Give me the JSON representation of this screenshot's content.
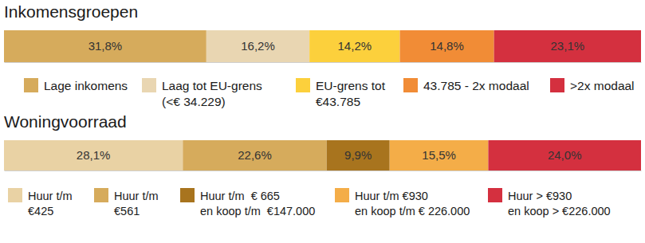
{
  "chart_data": [
    {
      "type": "bar",
      "title": "Inkomensgroepen",
      "orientation": "horizontal",
      "stacked": true,
      "data_labels": true,
      "tick_labels": false,
      "categories": [
        null
      ],
      "xlim": [
        0,
        100.1
      ],
      "series": [
        {
          "name": "Lage inkomens",
          "color": "#d6ab5c",
          "values": [
            31.8
          ],
          "value_labels": [
            "31,8%"
          ]
        },
        {
          "name": "Laag tot EU-grens\n(<€ 34.229)",
          "color": "#e9d6b2",
          "values": [
            16.2
          ],
          "value_labels": [
            "16,2%"
          ]
        },
        {
          "name": "EU-grens tot\n€43.785",
          "color": "#fcd03c",
          "values": [
            14.2
          ],
          "value_labels": [
            "14,2%"
          ]
        },
        {
          "name": "43.785 - 2x modaal",
          "color": "#f18c36",
          "values": [
            14.8
          ],
          "value_labels": [
            "14,8%"
          ]
        },
        {
          "name": ">2x modaal",
          "color": "#d4303f",
          "values": [
            23.1
          ],
          "value_labels": [
            "23,1%"
          ]
        }
      ]
    },
    {
      "type": "bar",
      "title": "Woningvoorraad",
      "orientation": "horizontal",
      "stacked": true,
      "data_labels": true,
      "tick_labels": false,
      "categories": [
        null
      ],
      "xlim": [
        0,
        100.1
      ],
      "series": [
        {
          "name": "Huur t/m\n€425",
          "color": "#e9d2a4",
          "values": [
            28.1
          ],
          "value_labels": [
            "28,1%"
          ]
        },
        {
          "name": "Huur t/m\n€561",
          "color": "#d6ab5c",
          "values": [
            22.6
          ],
          "value_labels": [
            "22,6%"
          ]
        },
        {
          "name": "Huur t/m  € 665\nen koop t/m  €147.000",
          "color": "#a8741e",
          "values": [
            9.9
          ],
          "value_labels": [
            "9,9%"
          ]
        },
        {
          "name": "Huur t/m €930\nen koop t/m € 226.000",
          "color": "#f4ad48",
          "values": [
            15.5
          ],
          "value_labels": [
            "15,5%"
          ]
        },
        {
          "name": "Huur > €930\nen koop > €226.000",
          "color": "#d4303f",
          "values": [
            24.0
          ],
          "value_labels": [
            "24,0%"
          ]
        }
      ]
    }
  ]
}
